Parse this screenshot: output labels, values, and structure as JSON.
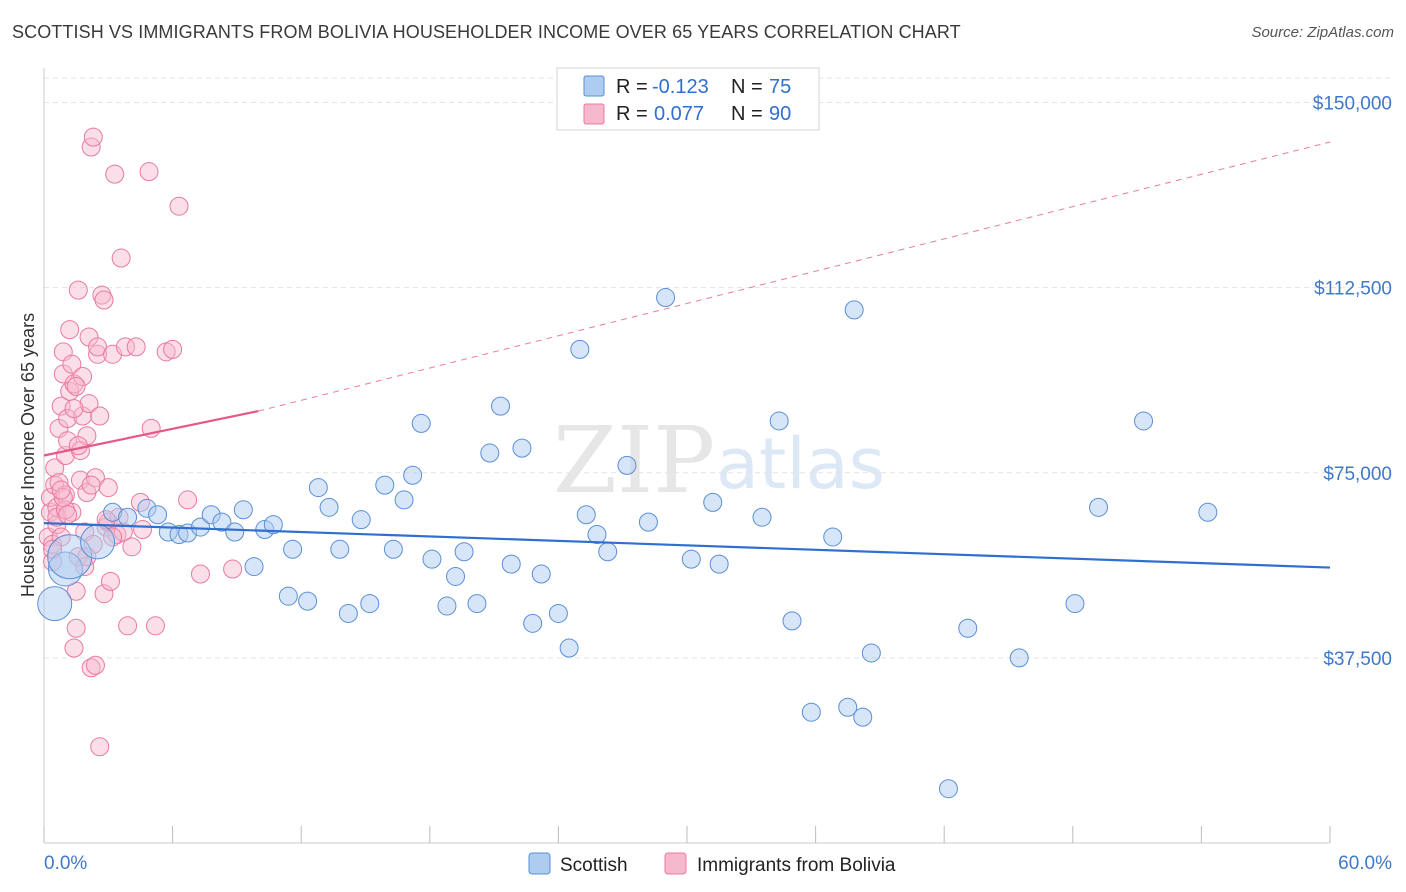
{
  "title": "SCOTTISH VS IMMIGRANTS FROM BOLIVIA HOUSEHOLDER INCOME OVER 65 YEARS CORRELATION CHART",
  "source": "Source: ZipAtlas.com",
  "watermark": {
    "part1": "ZIP",
    "part2": "atlas"
  },
  "legend": {
    "r_label": "R =",
    "n_label": "N =",
    "rows": [
      {
        "r": "-0.123",
        "n": "75",
        "color": "#aecbf0"
      },
      {
        "r": "0.077",
        "n": "90",
        "color": "#f6b8cc"
      }
    ]
  },
  "colors": {
    "scottish_fill": "#aecbf0",
    "scottish_stroke": "#5b8fd6",
    "scottish_line": "#2f6fd0",
    "bolivia_fill": "#f6b8cc",
    "bolivia_stroke": "#e97a9e",
    "bolivia_line": "#e8578a",
    "axis_text": "#3f79c8"
  },
  "chart_data": {
    "type": "scatter",
    "title": "SCOTTISH VS IMMIGRANTS FROM BOLIVIA HOUSEHOLDER INCOME OVER 65 YEARS CORRELATION CHART",
    "xlabel": "",
    "ylabel": "Householder Income Over 65 years",
    "xlim": [
      0,
      60
    ],
    "ylim": [
      0,
      157000
    ],
    "x_tick_labels": [
      "0.0%",
      "60.0%"
    ],
    "y_ticks": [
      37500,
      75000,
      112500,
      150000
    ],
    "y_tick_labels": [
      "$37,500",
      "$75,000",
      "$112,500",
      "$150,000"
    ],
    "grid": true,
    "legend_position": "top-center",
    "series": [
      {
        "name": "Scottish",
        "trend": {
          "x": [
            0,
            60
          ],
          "y": [
            64800,
            55800
          ]
        },
        "points": [
          {
            "x": 0.5,
            "y": 48500,
            "s": 3
          },
          {
            "x": 1.0,
            "y": 55500,
            "s": 3
          },
          {
            "x": 1.2,
            "y": 58000,
            "s": 4
          },
          {
            "x": 2.5,
            "y": 61000,
            "s": 3
          },
          {
            "x": 3.2,
            "y": 67000,
            "s": 1
          },
          {
            "x": 3.9,
            "y": 66000,
            "s": 1
          },
          {
            "x": 4.8,
            "y": 67800,
            "s": 1
          },
          {
            "x": 5.3,
            "y": 66500,
            "s": 1
          },
          {
            "x": 5.8,
            "y": 63000,
            "s": 1
          },
          {
            "x": 6.3,
            "y": 62500,
            "s": 1
          },
          {
            "x": 6.7,
            "y": 62800,
            "s": 1
          },
          {
            "x": 7.3,
            "y": 64000,
            "s": 1
          },
          {
            "x": 7.8,
            "y": 66500,
            "s": 1
          },
          {
            "x": 8.3,
            "y": 65000,
            "s": 1
          },
          {
            "x": 8.9,
            "y": 63000,
            "s": 1
          },
          {
            "x": 9.3,
            "y": 67500,
            "s": 1
          },
          {
            "x": 9.8,
            "y": 56000,
            "s": 1
          },
          {
            "x": 10.3,
            "y": 63500,
            "s": 1
          },
          {
            "x": 10.7,
            "y": 64500,
            "s": 1
          },
          {
            "x": 11.4,
            "y": 50000,
            "s": 1
          },
          {
            "x": 11.6,
            "y": 59500,
            "s": 1
          },
          {
            "x": 12.3,
            "y": 49000,
            "s": 1
          },
          {
            "x": 12.8,
            "y": 72000,
            "s": 1
          },
          {
            "x": 13.3,
            "y": 68000,
            "s": 1
          },
          {
            "x": 13.8,
            "y": 59500,
            "s": 1
          },
          {
            "x": 14.2,
            "y": 46500,
            "s": 1
          },
          {
            "x": 14.8,
            "y": 65500,
            "s": 1
          },
          {
            "x": 15.2,
            "y": 48500,
            "s": 1
          },
          {
            "x": 15.9,
            "y": 72500,
            "s": 1
          },
          {
            "x": 16.3,
            "y": 59500,
            "s": 1
          },
          {
            "x": 16.8,
            "y": 69500,
            "s": 1
          },
          {
            "x": 17.2,
            "y": 74500,
            "s": 1
          },
          {
            "x": 17.6,
            "y": 85000,
            "s": 1
          },
          {
            "x": 18.1,
            "y": 57500,
            "s": 1
          },
          {
            "x": 18.8,
            "y": 48000,
            "s": 1
          },
          {
            "x": 19.2,
            "y": 54000,
            "s": 1
          },
          {
            "x": 19.6,
            "y": 59000,
            "s": 1
          },
          {
            "x": 20.2,
            "y": 48500,
            "s": 1
          },
          {
            "x": 20.8,
            "y": 79000,
            "s": 1
          },
          {
            "x": 21.3,
            "y": 88500,
            "s": 1
          },
          {
            "x": 21.8,
            "y": 56500,
            "s": 1
          },
          {
            "x": 22.3,
            "y": 80000,
            "s": 1
          },
          {
            "x": 22.8,
            "y": 44500,
            "s": 1
          },
          {
            "x": 23.2,
            "y": 54500,
            "s": 1
          },
          {
            "x": 24.0,
            "y": 46500,
            "s": 1
          },
          {
            "x": 24.5,
            "y": 39500,
            "s": 1
          },
          {
            "x": 25.0,
            "y": 100000,
            "s": 1
          },
          {
            "x": 25.3,
            "y": 66500,
            "s": 1
          },
          {
            "x": 25.8,
            "y": 62500,
            "s": 1
          },
          {
            "x": 26.3,
            "y": 59000,
            "s": 1
          },
          {
            "x": 27.2,
            "y": 76500,
            "s": 1
          },
          {
            "x": 28.2,
            "y": 65000,
            "s": 1
          },
          {
            "x": 29.0,
            "y": 110500,
            "s": 1
          },
          {
            "x": 30.2,
            "y": 57500,
            "s": 1
          },
          {
            "x": 31.2,
            "y": 69000,
            "s": 1
          },
          {
            "x": 31.5,
            "y": 56500,
            "s": 1
          },
          {
            "x": 33.5,
            "y": 66000,
            "s": 1
          },
          {
            "x": 34.3,
            "y": 85500,
            "s": 1
          },
          {
            "x": 34.9,
            "y": 45000,
            "s": 1
          },
          {
            "x": 35.8,
            "y": 26500,
            "s": 1
          },
          {
            "x": 36.8,
            "y": 62000,
            "s": 1
          },
          {
            "x": 37.5,
            "y": 27500,
            "s": 1
          },
          {
            "x": 37.8,
            "y": 108000,
            "s": 1
          },
          {
            "x": 38.2,
            "y": 25500,
            "s": 1
          },
          {
            "x": 38.6,
            "y": 38500,
            "s": 1
          },
          {
            "x": 42.2,
            "y": 11000,
            "s": 1
          },
          {
            "x": 43.1,
            "y": 43500,
            "s": 1
          },
          {
            "x": 45.5,
            "y": 37500,
            "s": 1
          },
          {
            "x": 48.1,
            "y": 48500,
            "s": 1
          },
          {
            "x": 49.2,
            "y": 68000,
            "s": 1
          },
          {
            "x": 51.3,
            "y": 85500,
            "s": 1
          },
          {
            "x": 54.3,
            "y": 67000,
            "s": 1
          }
        ]
      },
      {
        "name": "Immigrants from Bolivia",
        "trend": {
          "x": [
            0,
            10
          ],
          "y": [
            78500,
            87500
          ],
          "dashed_x": [
            10,
            60
          ],
          "dashed_y": [
            87500,
            142000
          ]
        },
        "points": [
          {
            "x": 0.2,
            "y": 62000,
            "s": 1
          },
          {
            "x": 0.3,
            "y": 67000,
            "s": 1
          },
          {
            "x": 0.3,
            "y": 70000,
            "s": 1
          },
          {
            "x": 0.4,
            "y": 57000,
            "s": 1
          },
          {
            "x": 0.4,
            "y": 60500,
            "s": 1
          },
          {
            "x": 0.5,
            "y": 72500,
            "s": 1
          },
          {
            "x": 0.5,
            "y": 76000,
            "s": 1
          },
          {
            "x": 0.6,
            "y": 64500,
            "s": 1
          },
          {
            "x": 0.6,
            "y": 68000,
            "s": 1
          },
          {
            "x": 0.7,
            "y": 73000,
            "s": 1
          },
          {
            "x": 0.7,
            "y": 84000,
            "s": 1
          },
          {
            "x": 0.8,
            "y": 88500,
            "s": 1
          },
          {
            "x": 0.8,
            "y": 62000,
            "s": 1
          },
          {
            "x": 0.9,
            "y": 95000,
            "s": 1
          },
          {
            "x": 0.9,
            "y": 99500,
            "s": 1
          },
          {
            "x": 1.0,
            "y": 70500,
            "s": 1
          },
          {
            "x": 1.0,
            "y": 78500,
            "s": 1
          },
          {
            "x": 1.1,
            "y": 81500,
            "s": 1
          },
          {
            "x": 1.1,
            "y": 86000,
            "s": 1
          },
          {
            "x": 1.2,
            "y": 91500,
            "s": 1
          },
          {
            "x": 1.2,
            "y": 104000,
            "s": 1
          },
          {
            "x": 1.3,
            "y": 67000,
            "s": 1
          },
          {
            "x": 1.3,
            "y": 97000,
            "s": 1
          },
          {
            "x": 1.4,
            "y": 93000,
            "s": 1
          },
          {
            "x": 1.4,
            "y": 39500,
            "s": 1
          },
          {
            "x": 1.5,
            "y": 43500,
            "s": 1
          },
          {
            "x": 1.5,
            "y": 51000,
            "s": 1
          },
          {
            "x": 1.6,
            "y": 58000,
            "s": 1
          },
          {
            "x": 1.6,
            "y": 112000,
            "s": 1
          },
          {
            "x": 1.7,
            "y": 73500,
            "s": 1
          },
          {
            "x": 1.7,
            "y": 79500,
            "s": 1
          },
          {
            "x": 1.8,
            "y": 86500,
            "s": 1
          },
          {
            "x": 1.8,
            "y": 94500,
            "s": 1
          },
          {
            "x": 1.9,
            "y": 56000,
            "s": 1
          },
          {
            "x": 1.9,
            "y": 63000,
            "s": 1
          },
          {
            "x": 2.0,
            "y": 71000,
            "s": 1
          },
          {
            "x": 2.0,
            "y": 82500,
            "s": 1
          },
          {
            "x": 2.1,
            "y": 89000,
            "s": 1
          },
          {
            "x": 2.1,
            "y": 102500,
            "s": 1
          },
          {
            "x": 2.2,
            "y": 35500,
            "s": 1
          },
          {
            "x": 2.2,
            "y": 141000,
            "s": 1
          },
          {
            "x": 2.3,
            "y": 143000,
            "s": 1
          },
          {
            "x": 2.3,
            "y": 60500,
            "s": 1
          },
          {
            "x": 2.4,
            "y": 74000,
            "s": 1
          },
          {
            "x": 2.4,
            "y": 36000,
            "s": 1
          },
          {
            "x": 2.5,
            "y": 99000,
            "s": 1
          },
          {
            "x": 2.5,
            "y": 100500,
            "s": 1
          },
          {
            "x": 2.6,
            "y": 19500,
            "s": 1
          },
          {
            "x": 2.6,
            "y": 86500,
            "s": 1
          },
          {
            "x": 2.7,
            "y": 111000,
            "s": 1
          },
          {
            "x": 2.8,
            "y": 110000,
            "s": 1
          },
          {
            "x": 2.8,
            "y": 50500,
            "s": 1
          },
          {
            "x": 2.9,
            "y": 64000,
            "s": 1
          },
          {
            "x": 3.0,
            "y": 72000,
            "s": 1
          },
          {
            "x": 3.0,
            "y": 65000,
            "s": 1
          },
          {
            "x": 3.1,
            "y": 53000,
            "s": 1
          },
          {
            "x": 3.2,
            "y": 99000,
            "s": 1
          },
          {
            "x": 3.3,
            "y": 135500,
            "s": 1
          },
          {
            "x": 3.4,
            "y": 62500,
            "s": 1
          },
          {
            "x": 3.5,
            "y": 66000,
            "s": 1
          },
          {
            "x": 3.6,
            "y": 118500,
            "s": 1
          },
          {
            "x": 3.7,
            "y": 63000,
            "s": 1
          },
          {
            "x": 3.8,
            "y": 100500,
            "s": 1
          },
          {
            "x": 3.9,
            "y": 44000,
            "s": 1
          },
          {
            "x": 4.1,
            "y": 60000,
            "s": 1
          },
          {
            "x": 4.3,
            "y": 100500,
            "s": 1
          },
          {
            "x": 4.5,
            "y": 69000,
            "s": 1
          },
          {
            "x": 4.6,
            "y": 63500,
            "s": 1
          },
          {
            "x": 4.9,
            "y": 136000,
            "s": 1
          },
          {
            "x": 5.0,
            "y": 84000,
            "s": 1
          },
          {
            "x": 5.2,
            "y": 44000,
            "s": 1
          },
          {
            "x": 5.7,
            "y": 99500,
            "s": 1
          },
          {
            "x": 6.0,
            "y": 100000,
            "s": 1
          },
          {
            "x": 6.3,
            "y": 129000,
            "s": 1
          },
          {
            "x": 6.7,
            "y": 69500,
            "s": 1
          },
          {
            "x": 7.3,
            "y": 54500,
            "s": 1
          },
          {
            "x": 8.8,
            "y": 55500,
            "s": 1
          },
          {
            "x": 0.6,
            "y": 66000,
            "s": 1
          },
          {
            "x": 1.0,
            "y": 67500,
            "s": 1
          },
          {
            "x": 1.5,
            "y": 92500,
            "s": 1
          },
          {
            "x": 0.9,
            "y": 70000,
            "s": 1
          },
          {
            "x": 2.2,
            "y": 72500,
            "s": 1
          },
          {
            "x": 1.6,
            "y": 80500,
            "s": 1
          },
          {
            "x": 2.0,
            "y": 58000,
            "s": 1
          },
          {
            "x": 0.4,
            "y": 59500,
            "s": 1
          },
          {
            "x": 1.1,
            "y": 66500,
            "s": 1
          },
          {
            "x": 0.8,
            "y": 71500,
            "s": 1
          },
          {
            "x": 2.9,
            "y": 65500,
            "s": 1
          },
          {
            "x": 3.2,
            "y": 62000,
            "s": 1
          },
          {
            "x": 1.4,
            "y": 88000,
            "s": 1
          }
        ]
      }
    ]
  },
  "bottom_legend": [
    {
      "label": "Scottish",
      "color": "#aecbf0"
    },
    {
      "label": "Immigrants from Bolivia",
      "color": "#f6b8cc"
    }
  ]
}
